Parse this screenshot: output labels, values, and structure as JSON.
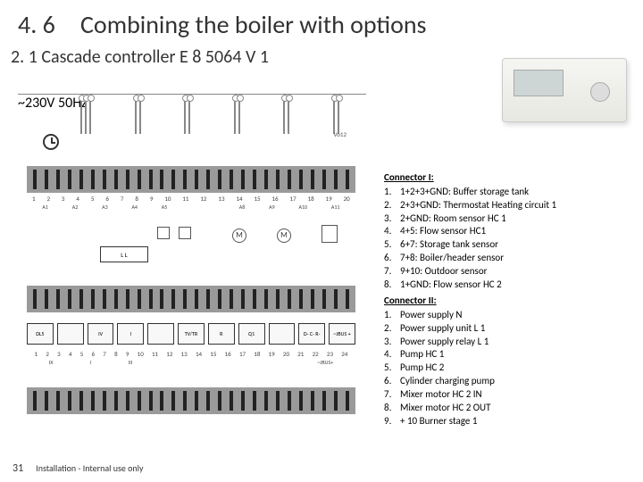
{
  "header": {
    "section_number": "4. 6",
    "section_title": "Combining the boiler with options"
  },
  "subtitle": "2. 1 Cascade controller E 8 5064 V 1",
  "diagram": {
    "vo12": "Vo12",
    "power_label": "~230V 50Hz",
    "ll_box": "L   L",
    "numbers_top": [
      "1",
      "2",
      "3",
      "4",
      "5",
      "6",
      "7",
      "8",
      "9",
      "10",
      "11",
      "12",
      "13",
      "14",
      "15",
      "16",
      "17",
      "18",
      "19",
      "20"
    ],
    "labels_top": [
      "A1",
      "A2",
      "A3",
      "A4",
      "A5",
      "",
      "",
      "A8",
      "A9",
      "A10",
      "A11"
    ],
    "motor1": "M",
    "motor2": "M",
    "segments": [
      "DL5",
      "",
      "IV",
      "I",
      "",
      "TV/TR",
      "R",
      "Q1",
      "",
      "D- C- R-",
      "~JBUS +"
    ],
    "numbers_bot": [
      "1",
      "2",
      "3",
      "4",
      "5",
      "6",
      "7",
      "8",
      "9",
      "10",
      "11",
      "12",
      "13",
      "14",
      "15",
      "16",
      "17",
      "18",
      "19",
      "20",
      "21",
      "22",
      "23",
      "24"
    ],
    "labels_bot": [
      "IX",
      "I",
      "III",
      "",
      "",
      "",
      "",
      "~JBUS+"
    ]
  },
  "connector1": {
    "title": "Connector I:",
    "items": [
      {
        "n": "1.",
        "t": "1+2+3+GND: Buffer storage tank"
      },
      {
        "n": "2.",
        "t": "2+3+GND: Thermostat Heating circuit 1"
      },
      {
        "n": "3.",
        "t": "2+GND: Room sensor HC 1"
      },
      {
        "n": "4.",
        "t": "4+5: Flow sensor HC1"
      },
      {
        "n": "5.",
        "t": "6+7: Storage tank sensor"
      },
      {
        "n": "6.",
        "t": "7+8: Boiler/header sensor"
      },
      {
        "n": "7.",
        "t": "9+10: Outdoor sensor"
      },
      {
        "n": "8.",
        "t": "1+GND: Flow sensor HC 2"
      }
    ]
  },
  "connector2": {
    "title": "Connector II:",
    "items": [
      {
        "n": "1.",
        "t": "Power supply N"
      },
      {
        "n": "2.",
        "t": "Power supply unit L 1"
      },
      {
        "n": "3.",
        "t": "Power supply relay L 1"
      },
      {
        "n": "4.",
        "t": "Pump HC 1"
      },
      {
        "n": "5.",
        "t": "Pump HC 2"
      },
      {
        "n": "6.",
        "t": "Cylinder charging pump"
      },
      {
        "n": "7.",
        "t": "Mixer motor HC 2 IN"
      },
      {
        "n": "8.",
        "t": "Mixer motor HC 2 OUT"
      },
      {
        "n": "9.",
        "t": "+ 10 Burner stage 1"
      }
    ]
  },
  "footer": {
    "page": "31",
    "text": "Installation -  Internal use only"
  }
}
